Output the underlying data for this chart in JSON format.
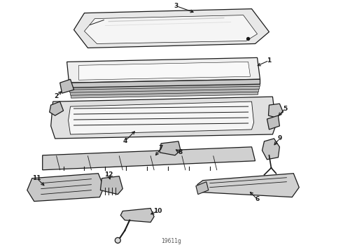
{
  "figure_id": "19611g",
  "background_color": "#ffffff",
  "line_color": "#1a1a1a",
  "fill_light": "#f0f0f0",
  "fill_mid": "#d8d8d8",
  "fill_dark": "#b0b0b0"
}
